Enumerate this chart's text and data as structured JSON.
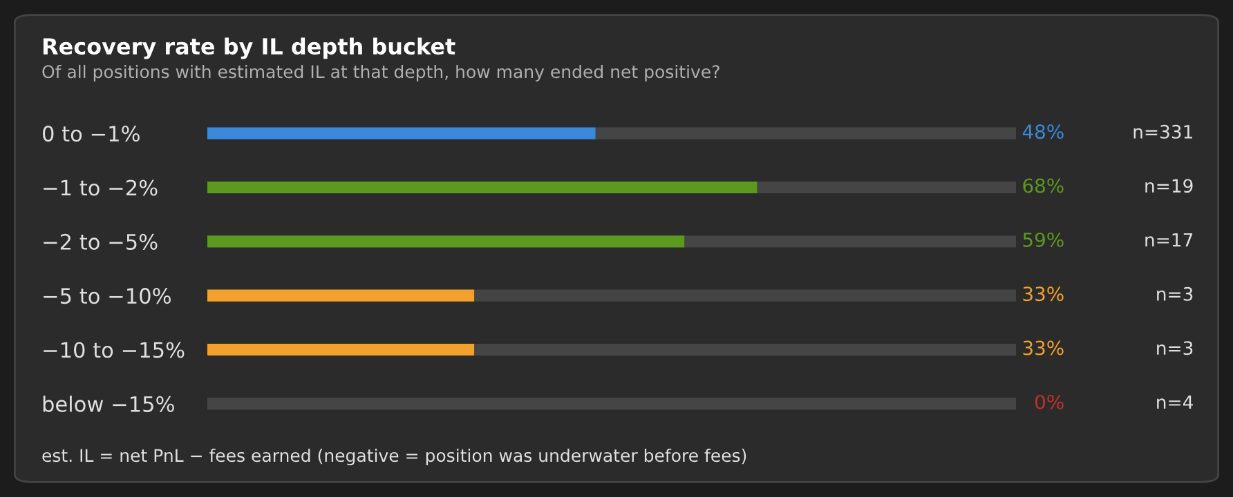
{
  "chart_data": {
    "type": "bar",
    "orientation": "horizontal",
    "stacked": true,
    "title": "Recovery rate by IL depth bucket",
    "subtitle": "Of all positions with estimated IL at that depth, how many ended net positive?",
    "categories": [
      "0 to −1%",
      "−1 to −2%",
      "−2 to −5%",
      "−5 to −10%",
      "−10 to −15%",
      "below −15%"
    ],
    "xlim": [
      0,
      100
    ],
    "tick_labels": "y",
    "grid": false,
    "legend": false,
    "series": [
      {
        "colors": [
          "#3b8ad9",
          "#5b9a1f",
          "#5b9a1f",
          "#f2a12e",
          "#f2a12e",
          "#c4302b"
        ],
        "values": [
          48,
          68,
          59,
          33,
          33,
          0
        ],
        "value_labels": [
          "48%",
          "68%",
          "59%",
          "33%",
          "33%",
          "0%"
        ]
      },
      {
        "color": "#454545",
        "values": [
          52,
          32,
          41,
          67,
          67,
          100
        ]
      }
    ],
    "annotations": [
      "n=331",
      "n=19",
      "n=17",
      "n=3",
      "n=3",
      "n=4",
      "est. IL = net PnL − fees earned (negative = position was underwater before fees)"
    ]
  }
}
